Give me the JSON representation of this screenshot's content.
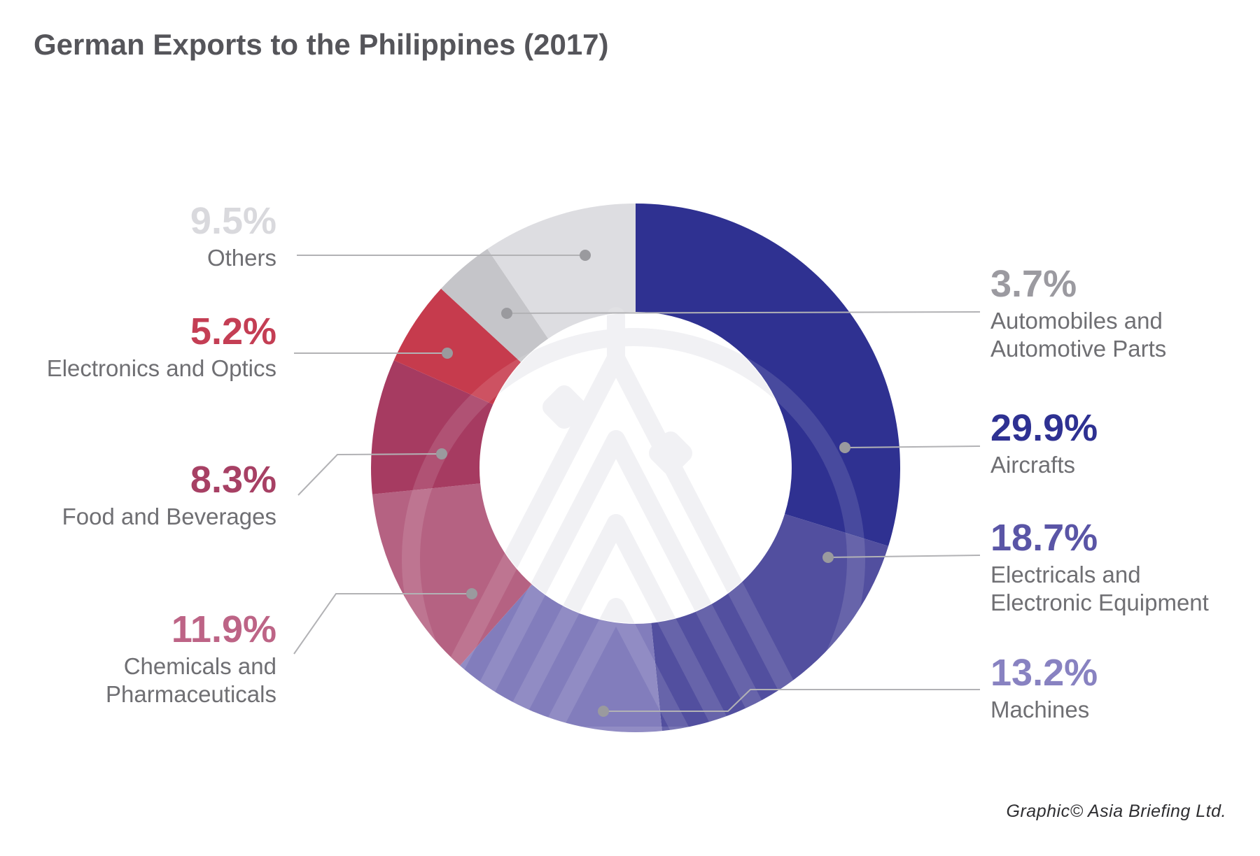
{
  "page": {
    "title": "German Exports to the Philippines (2017)",
    "credit": "Graphic© Asia Briefing Ltd."
  },
  "icons": {
    "watermark": "asia-briefing-logo-watermark"
  },
  "colors": {
    "background": "#ffffff",
    "title_text": "#55555a",
    "sublabel_text": "#6f6f73",
    "leader_line": "#b2b2b5",
    "leader_dot": "#9a9a9e",
    "credit_text": "#2e2e31"
  },
  "chart_data": {
    "type": "pie",
    "variant": "donut",
    "title": "German Exports to the Philippines (2017)",
    "unit": "%",
    "legend_position": "callout-labels-left-and-right",
    "start_angle_deg_clockwise_from_top": 0,
    "segments": [
      {
        "id": "aircrafts",
        "value": 29.9,
        "pct_display": "29.9%",
        "line1": "Aircrafts",
        "line2": "",
        "color": "#2f3191",
        "pct_color": "#2e3192",
        "side": "right"
      },
      {
        "id": "electricals",
        "value": 18.7,
        "pct_display": "18.7%",
        "line1": "Electricals and",
        "line2": "Electronic Equipment",
        "color": "#524f9f",
        "pct_color": "#5a55a6",
        "side": "right"
      },
      {
        "id": "machines",
        "value": 13.2,
        "pct_display": "13.2%",
        "line1": "Machines",
        "line2": "",
        "color": "#827dbc",
        "pct_color": "#8882c1",
        "side": "right"
      },
      {
        "id": "chemicals",
        "value": 11.9,
        "pct_display": "11.9%",
        "line1": "Chemicals and",
        "line2": "Pharmaceuticals",
        "color": "#b56282",
        "pct_color": "#bd6486",
        "side": "left"
      },
      {
        "id": "food",
        "value": 8.3,
        "pct_display": "8.3%",
        "line1": "Food and Beverages",
        "line2": "",
        "color": "#a63b61",
        "pct_color": "#a74064",
        "side": "left"
      },
      {
        "id": "electronics",
        "value": 5.2,
        "pct_display": "5.2%",
        "line1": "Electronics and Optics",
        "line2": "",
        "color": "#c63b4d",
        "pct_color": "#c43e54",
        "side": "left"
      },
      {
        "id": "automobiles",
        "value": 3.7,
        "pct_display": "3.7%",
        "line1": "Automobiles and",
        "line2": "Automotive Parts",
        "color": "#c5c5c9",
        "pct_color": "#9b9aa0",
        "side": "right"
      },
      {
        "id": "others",
        "value": 9.5,
        "pct_display": "9.5%",
        "line1": "Others",
        "line2": "",
        "color": "#dddde1",
        "pct_color": "#d9d9dd",
        "side": "left"
      }
    ]
  }
}
